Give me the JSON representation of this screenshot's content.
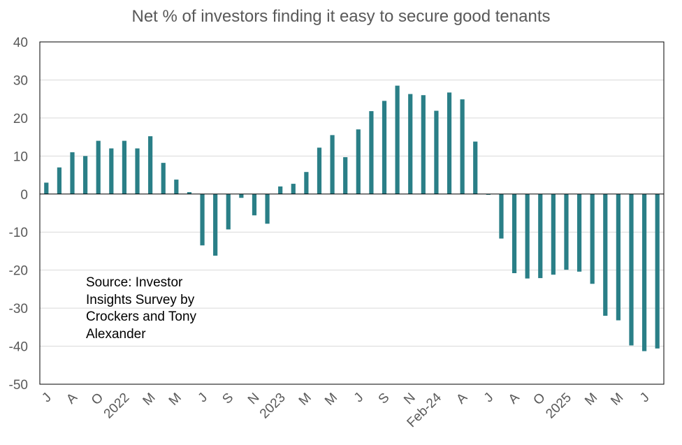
{
  "chart_data": {
    "type": "bar",
    "title": "Net % of investors finding it easy to secure good tenants",
    "annotation": "Source: Investor Insights Survey by Crockers and Tony Alexander",
    "ylim": [
      -50,
      40
    ],
    "yticks": [
      40,
      30,
      20,
      10,
      0,
      -10,
      -20,
      -30,
      -40,
      -50
    ],
    "grid": true,
    "bar_color": "#2a7f87",
    "x_tick_labels": [
      "J",
      "A",
      "O",
      "2022",
      "M",
      "M",
      "J",
      "S",
      "N",
      "2023",
      "M",
      "M",
      "J",
      "S",
      "N",
      "Feb-24",
      "A",
      "J",
      "A",
      "O",
      "2025",
      "M",
      "M",
      "J"
    ],
    "values": [
      3,
      7,
      11,
      10,
      14,
      12,
      14,
      12,
      15.2,
      8.2,
      3.8,
      0.5,
      -13.5,
      -16.2,
      -9.3,
      -1,
      -5.6,
      -7.8,
      2,
      2.7,
      5.8,
      12.2,
      15.5,
      9.7,
      17,
      21.8,
      24.5,
      28.5,
      26.3,
      26,
      21.9,
      26.7,
      24.9,
      13.8,
      -0.2,
      -11.7,
      -20.8,
      -22.2,
      -22.1,
      -21.2,
      -19.9,
      -20.4,
      -23.6,
      -32,
      -33.2,
      -39.8,
      -41.3,
      -40.6
    ]
  }
}
